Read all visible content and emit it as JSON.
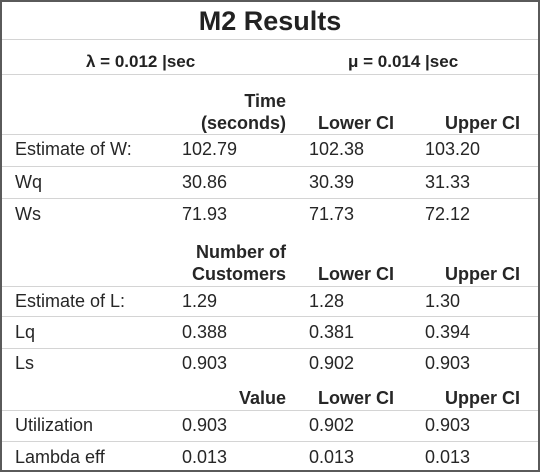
{
  "title": "M2 Results",
  "rates": {
    "lambda": "λ = 0.012 |sec",
    "mu": "μ =  0.014 |sec"
  },
  "headers": {
    "time_line1": "Time",
    "time_line2": "(seconds)",
    "lower_ci": "Lower CI",
    "upper_ci": "Upper CI",
    "num_line1": "Number of",
    "num_line2": "Customers",
    "value": "Value"
  },
  "time_rows": [
    {
      "label": "Estimate of W:",
      "value": "102.79",
      "lower": "102.38",
      "upper": "103.20"
    },
    {
      "label": "Wq",
      "value": "30.86",
      "lower": "30.39",
      "upper": "31.33"
    },
    {
      "label": "Ws",
      "value": "71.93",
      "lower": "71.73",
      "upper": "72.12"
    }
  ],
  "customer_rows": [
    {
      "label": "Estimate of L:",
      "value": "1.29",
      "lower": "1.28",
      "upper": "1.30"
    },
    {
      "label": "Lq",
      "value": "0.388",
      "lower": "0.381",
      "upper": "0.394"
    },
    {
      "label": "Ls",
      "value": "0.903",
      "lower": "0.902",
      "upper": "0.903"
    }
  ],
  "value_rows": [
    {
      "label": "Utilization",
      "value": "0.903",
      "lower": "0.902",
      "upper": "0.903"
    },
    {
      "label": "Lambda eff",
      "value": "0.013",
      "lower": "0.013",
      "upper": "0.013"
    }
  ]
}
